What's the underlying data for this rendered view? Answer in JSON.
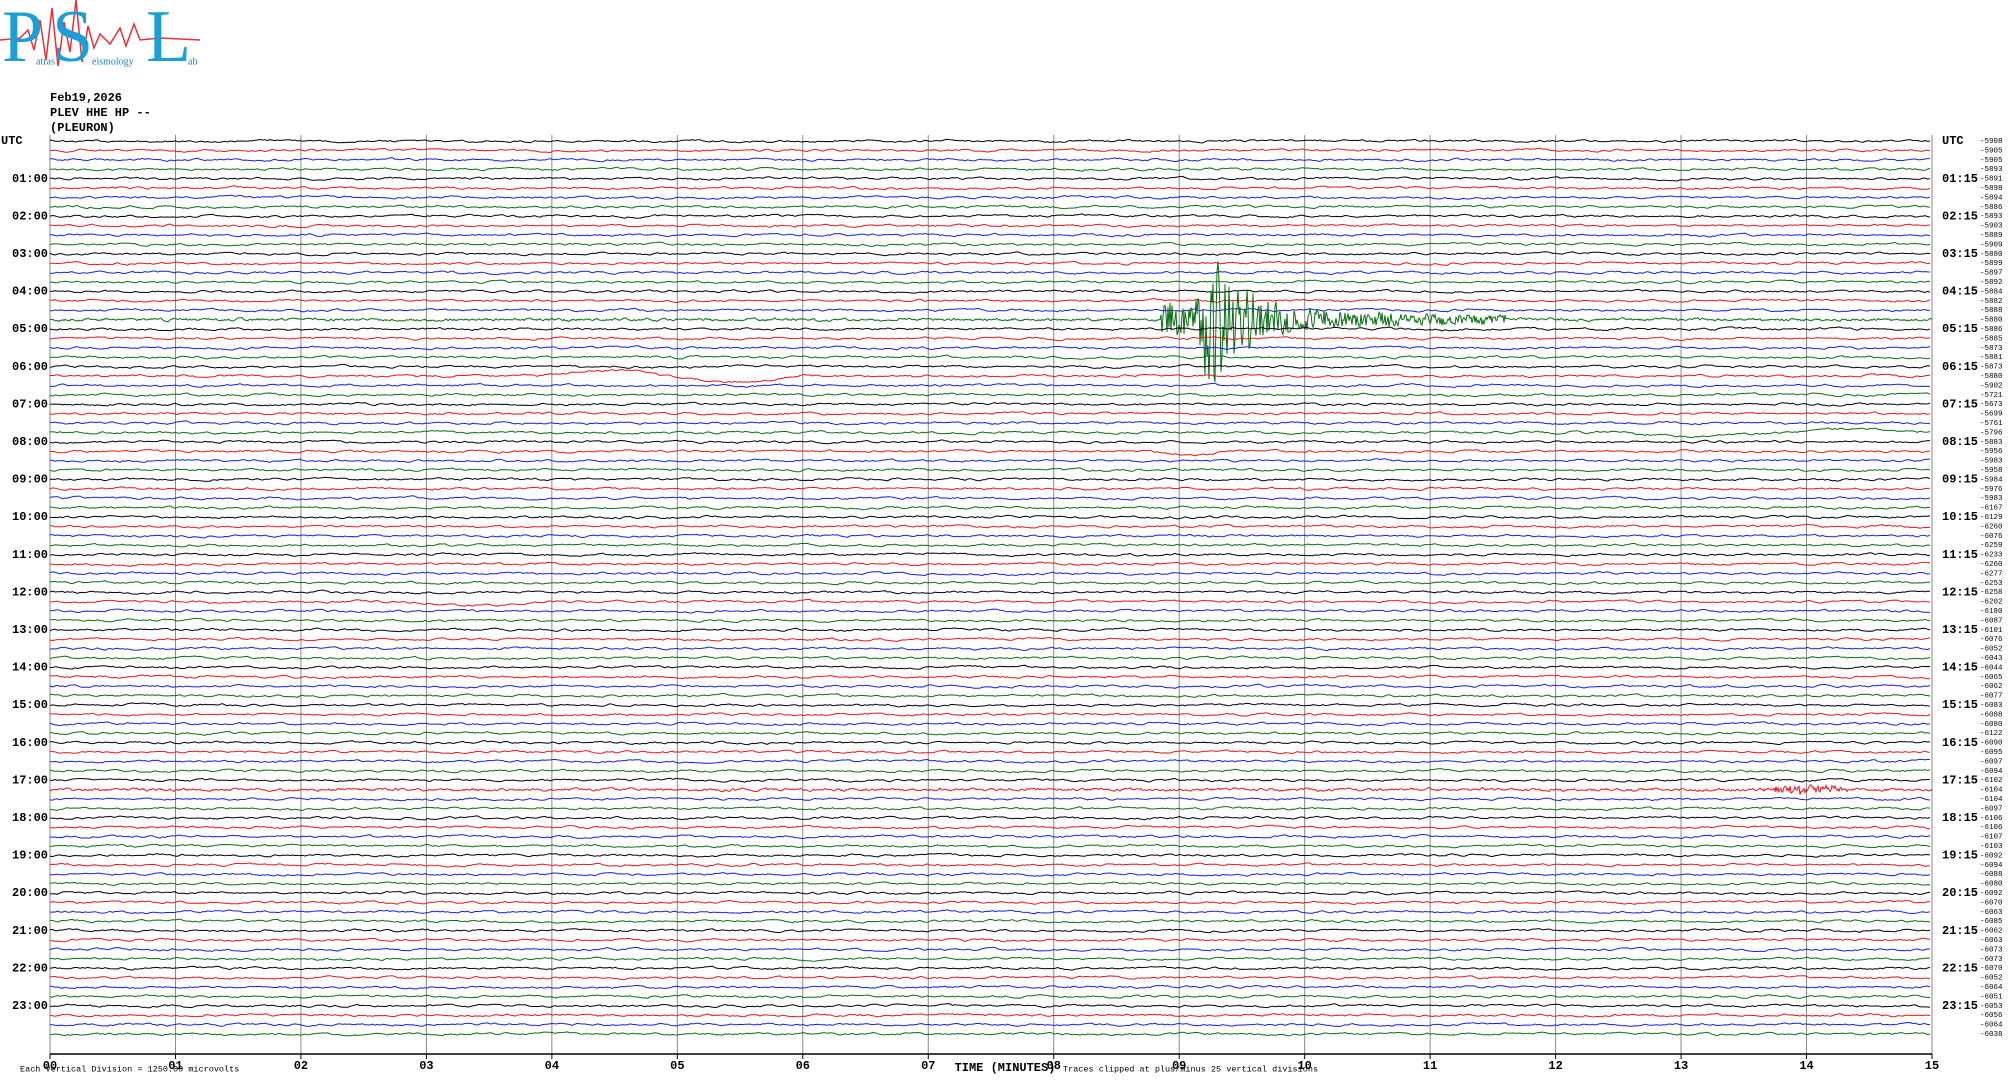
{
  "logo": {
    "letters": [
      "P",
      "S",
      "L"
    ],
    "words": [
      "atras",
      "eismology",
      "ab"
    ]
  },
  "header": {
    "date": "Feb19,2026",
    "station": "PLEV HHE HP --",
    "site": "(PLEURON)"
  },
  "left_labels": [
    "UTC",
    "01:00",
    "02:00",
    "03:00",
    "04:00",
    "05:00",
    "06:00",
    "07:00",
    "08:00",
    "09:00",
    "10:00",
    "11:00",
    "12:00",
    "13:00",
    "14:00",
    "15:00",
    "16:00",
    "17:00",
    "18:00",
    "19:00",
    "20:00",
    "21:00",
    "22:00",
    "23:00"
  ],
  "right_labels": [
    "UTC",
    "01:15",
    "02:15",
    "03:15",
    "04:15",
    "05:15",
    "06:15",
    "07:15",
    "08:15",
    "09:15",
    "10:15",
    "11:15",
    "12:15",
    "13:15",
    "14:15",
    "15:15",
    "16:15",
    "17:15",
    "18:15",
    "19:15",
    "20:15",
    "21:15",
    "22:15",
    "23:15"
  ],
  "trace_offsets": [
    "-5908",
    "-5905",
    "-5905",
    "-5893",
    "-5891",
    "-5898",
    "-5894",
    "-5886",
    "-5893",
    "-5903",
    "-5889",
    "-5909",
    "-5880",
    "-5899",
    "-5897",
    "-5892",
    "-5884",
    "-5882",
    "-5888",
    "-5880",
    "-5886",
    "-5885",
    "-5873",
    "-5881",
    "-5873",
    "-5880",
    "-5902",
    "-5721",
    "-5673",
    "-5699",
    "-5761",
    "-5796",
    "-5883",
    "-5956",
    "-5983",
    "-5958",
    "-5984",
    "-5976",
    "-5983",
    "-6167",
    "-6129",
    "-6260",
    "-6076",
    "-6259",
    "-6233",
    "-6260",
    "-6277",
    "-6253",
    "-6258",
    "-6202",
    "-6180",
    "-6087",
    "-6101",
    "-6076",
    "-6052",
    "-6043",
    "-6044",
    "-6065",
    "-6062",
    "-6077",
    "-6083",
    "-6088",
    "-6080",
    "-6122",
    "-6090",
    "-6095",
    "-6097",
    "-6094",
    "-6102",
    "-6104",
    "-6104",
    "-6097",
    "-6106",
    "-6106",
    "-6107",
    "-6103",
    "-6092",
    "-6094",
    "-6088",
    "-6080",
    "-6092",
    "-6070",
    "-6063",
    "-6085",
    "-6062",
    "-6063",
    "-6073",
    "-6073",
    "-6070",
    "-6052",
    "-6064",
    "-6051",
    "-6053",
    "-6056",
    "-6064",
    "-6038"
  ],
  "x_labels": [
    "00",
    "01",
    "02",
    "03",
    "04",
    "05",
    "06",
    "07",
    "08",
    "09",
    "10",
    "11",
    "12",
    "13",
    "14",
    "15"
  ],
  "x_title": "TIME (MINUTES)",
  "vertical_division": "Each Vertical Division = 1250.00 microvolts",
  "clip_note": "Traces clipped at plus/minus 25 vertical divisions"
}
